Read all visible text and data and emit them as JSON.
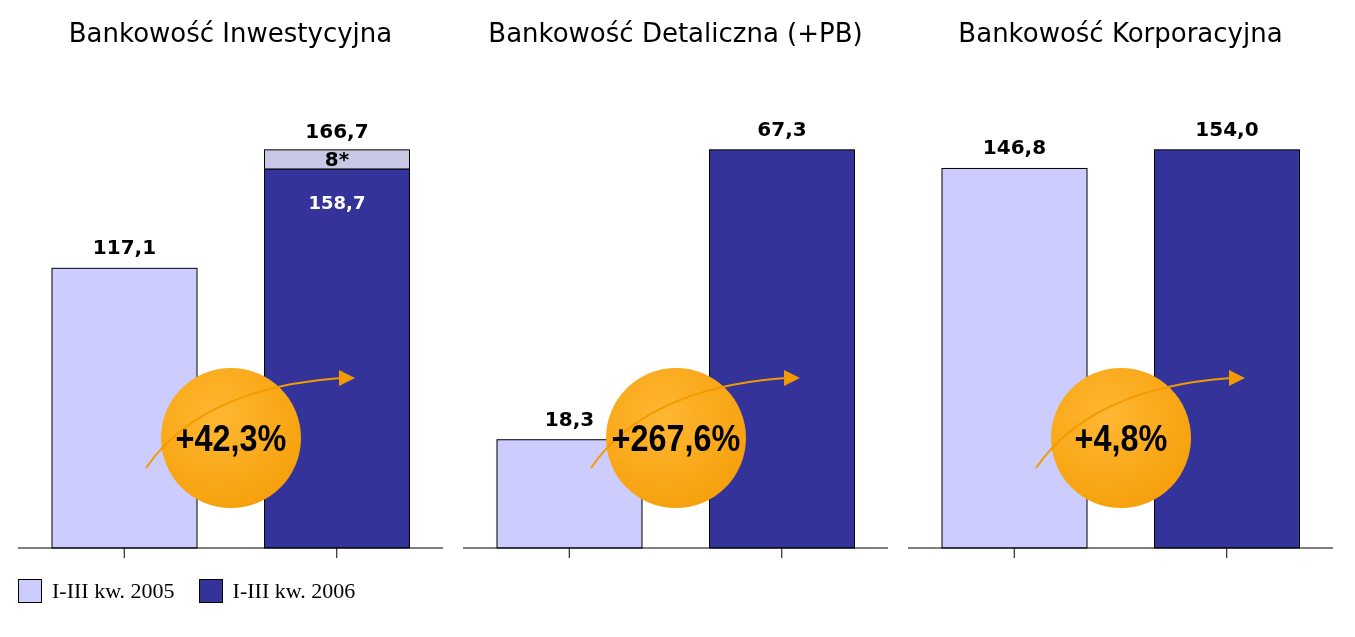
{
  "chart_data": [
    {
      "type": "bar",
      "title": "Bankowość Inwestycyjna",
      "categories": [
        null,
        null
      ],
      "stacked": true,
      "legend": "bottom",
      "series": [
        {
          "name": "I-III kw. 2005",
          "color": "#ccccff",
          "values": [
            117.1,
            null
          ],
          "value_labels": [
            "117,1",
            null
          ]
        },
        {
          "name": "I-III kw. 2006",
          "color": "#333399",
          "values": [
            null,
            158.7
          ],
          "value_labels": [
            null,
            "158,7"
          ]
        },
        {
          "color": "#c8c8e4",
          "values": [
            null,
            8
          ],
          "value_labels": [
            null,
            "8*"
          ]
        }
      ],
      "totals": [
        null,
        "166,7"
      ],
      "annotations": [
        "+42,3%"
      ]
    },
    {
      "type": "bar",
      "title": "Bankowość Detaliczna (+PB)",
      "categories": [
        null,
        null
      ],
      "values": [
        18.3,
        67.3
      ],
      "colors": [
        "#ccccff",
        "#333399"
      ],
      "value_labels": [
        "18,3",
        "67,3"
      ],
      "annotations": [
        "+267,6%"
      ]
    },
    {
      "type": "bar",
      "title": "Bankowość Korporacyjna",
      "categories": [
        null,
        null
      ],
      "values": [
        146.8,
        154.0
      ],
      "colors": [
        "#ccccff",
        "#333399"
      ],
      "value_labels": [
        "146,8",
        "154,0"
      ],
      "annotations": [
        "+4,8%"
      ]
    }
  ]
}
